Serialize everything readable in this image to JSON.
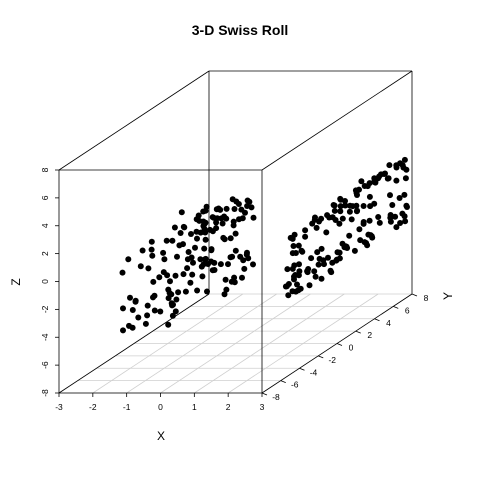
{
  "chart_data": {
    "type": "scatter",
    "title": "3-D Swiss Roll",
    "xlabel": "X",
    "ylabel": "Y",
    "zlabel": "Z",
    "x_ticks": [
      "-3",
      "-2",
      "-1",
      "0",
      "1",
      "2",
      "3"
    ],
    "y_ticks": [
      "-8",
      "-6",
      "-4",
      "-2",
      "0",
      "2",
      "4",
      "6",
      "8"
    ],
    "z_ticks": [
      "-8",
      "-6",
      "-4",
      "-2",
      "0",
      "2",
      "4",
      "6",
      "8"
    ],
    "xlim": [
      -3,
      3
    ],
    "ylim": [
      -8,
      8
    ],
    "zlim": [
      -8,
      8
    ],
    "grid": "xy floor",
    "marker_color": "#000000",
    "clusters": [
      {
        "x_range": [
          -3,
          -1.3
        ],
        "y_range": [
          -2,
          8
        ],
        "z_range": [
          -6.8,
          -0.1
        ]
      },
      {
        "x_range": [
          2.8,
          3.0
        ],
        "y_range": [
          -5,
          8
        ],
        "z_range": [
          -3.0,
          2.5
        ]
      }
    ]
  }
}
